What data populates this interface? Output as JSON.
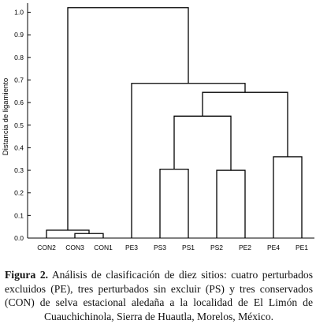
{
  "chart_data": {
    "type": "dendrogram",
    "ylabel": "Distancia de ligamiento",
    "ylim": [
      0,
      1.0
    ],
    "yticks": [
      "0.0",
      "0.1",
      "0.2",
      "0.3",
      "0.4",
      "0.5",
      "0.6",
      "0.7",
      "0.8",
      "0.9",
      "1.0"
    ],
    "leaves": [
      "CON2",
      "CON3",
      "CON1",
      "PE3",
      "PS3",
      "PS1",
      "PS2",
      "PE2",
      "PE4",
      "PE1"
    ],
    "merges": [
      {
        "a": "CON3",
        "b": "CON1",
        "height": 0.02
      },
      {
        "a": "CON2",
        "b": "CON3+CON1",
        "height": 0.035
      },
      {
        "a": "PS3",
        "b": "PS1",
        "height": 0.305
      },
      {
        "a": "PS2",
        "b": "PE2",
        "height": 0.3
      },
      {
        "a": "PE4",
        "b": "PE1",
        "height": 0.36
      },
      {
        "a": "PS3+PS1",
        "b": "PS2+PE2",
        "height": 0.54
      },
      {
        "a": "PS3+PS1+PS2+PE2",
        "b": "PE4+PE1",
        "height": 0.645
      },
      {
        "a": "PE3",
        "b": "PS3+PS1+PS2+PE2+PE4+PE1",
        "height": 0.685
      },
      {
        "a": "CON2+CON3+CON1",
        "b": "PE3+PS3+PS1+PS2+PE2+PE4+PE1",
        "height": 1.02
      }
    ]
  },
  "caption": {
    "label": "Figura 2.",
    "text": "Análisis de clasificación de diez sitios: cuatro perturbados excluidos (PE), tres perturbados sin excluir (PS) y tres conservados (CON) de selva estacional aledaña a la localidad de El Limón de Cuauchichinola, Sierra de Huautla, Morelos, México."
  }
}
